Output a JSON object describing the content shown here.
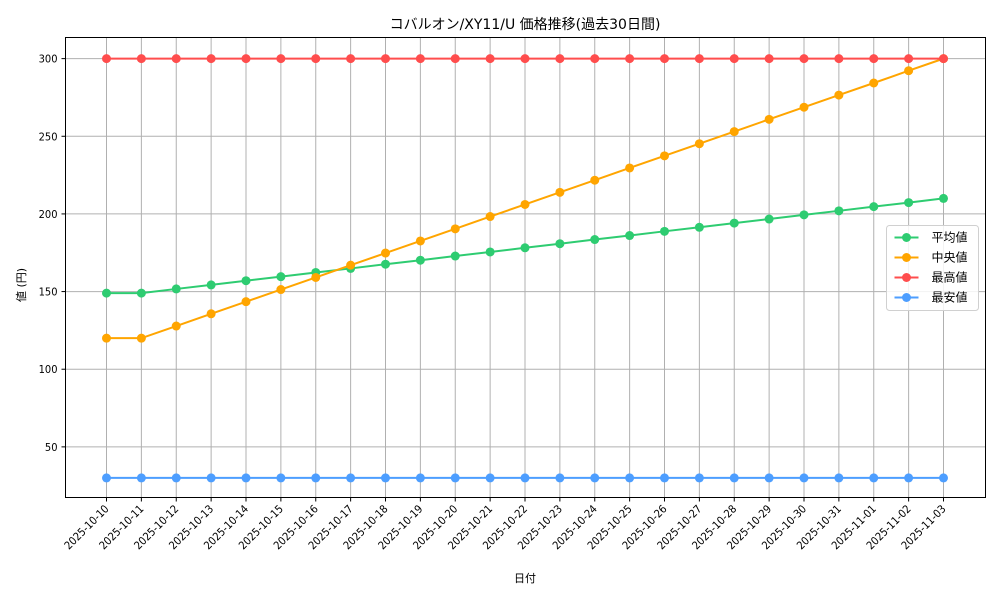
{
  "chart_data": {
    "type": "line",
    "title": "コバルオン/XY11/U 価格推移(過去30日間)",
    "xlabel": "日付",
    "ylabel": "値 (円)",
    "ylim": [
      17.4,
      313.6
    ],
    "yticks": [
      50,
      100,
      150,
      200,
      250,
      300
    ],
    "grid": true,
    "legend_position": "center right",
    "x": [
      "2025-10-10",
      "2025-10-11",
      "2025-10-12",
      "2025-10-13",
      "2025-10-14",
      "2025-10-15",
      "2025-10-16",
      "2025-10-17",
      "2025-10-18",
      "2025-10-19",
      "2025-10-20",
      "2025-10-21",
      "2025-10-22",
      "2025-10-23",
      "2025-10-24",
      "2025-10-25",
      "2025-10-26",
      "2025-10-27",
      "2025-10-28",
      "2025-10-29",
      "2025-10-30",
      "2025-10-31",
      "2025-11-01",
      "2025-11-02",
      "2025-11-03"
    ],
    "series": [
      {
        "name": "平均値",
        "color": "#2ecc71",
        "values": [
          149.0,
          149.0,
          151.7,
          154.3,
          157.0,
          159.6,
          162.3,
          164.9,
          167.6,
          170.2,
          172.9,
          175.5,
          178.2,
          180.8,
          183.5,
          186.1,
          188.8,
          191.4,
          194.1,
          196.7,
          199.4,
          202.0,
          204.7,
          207.3,
          210.0
        ]
      },
      {
        "name": "中央値",
        "color": "#ffa500",
        "values": [
          120.0,
          120.0,
          127.8,
          135.7,
          143.5,
          151.3,
          159.1,
          167.0,
          174.8,
          182.6,
          190.4,
          198.3,
          206.1,
          213.9,
          221.7,
          229.6,
          237.4,
          245.2,
          253.0,
          260.9,
          268.7,
          276.5,
          284.3,
          292.2,
          300.0
        ]
      },
      {
        "name": "最高値",
        "color": "#ff4d4d",
        "values": [
          300,
          300,
          300,
          300,
          300,
          300,
          300,
          300,
          300,
          300,
          300,
          300,
          300,
          300,
          300,
          300,
          300,
          300,
          300,
          300,
          300,
          300,
          300,
          300,
          300
        ]
      },
      {
        "name": "最安値",
        "color": "#4d9eff",
        "values": [
          30,
          30,
          30,
          30,
          30,
          30,
          30,
          30,
          30,
          30,
          30,
          30,
          30,
          30,
          30,
          30,
          30,
          30,
          30,
          30,
          30,
          30,
          30,
          30,
          30
        ]
      }
    ]
  }
}
